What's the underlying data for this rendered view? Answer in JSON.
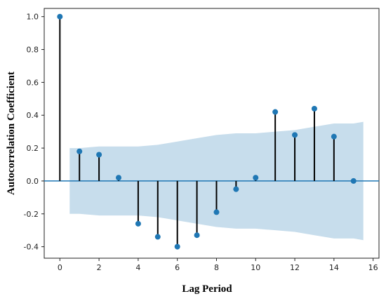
{
  "chart_data": {
    "type": "stem",
    "xlabel": "Lag Period",
    "ylabel": "Autocorrelation Coefficient",
    "xlim": [
      -0.8,
      16.3
    ],
    "ylim": [
      -0.47,
      1.05
    ],
    "x_ticks": [
      0,
      2,
      4,
      6,
      8,
      10,
      12,
      14,
      16
    ],
    "y_ticks": [
      1.0,
      0.8,
      0.6,
      0.4,
      0.2,
      0.0,
      -0.2,
      -0.4
    ],
    "x_tick_labels": [
      "0",
      "2",
      "4",
      "6",
      "8",
      "10",
      "12",
      "14",
      "16"
    ],
    "y_tick_labels": [
      "1.0",
      "0.8",
      "0.6",
      "0.4",
      "0.2",
      "0.0",
      "-0.2",
      "-0.4"
    ],
    "series": [
      {
        "x": [
          0,
          1,
          2,
          3,
          4,
          5,
          6,
          7,
          8,
          9,
          10,
          11,
          12,
          13,
          14,
          15
        ],
        "values": [
          1.0,
          0.18,
          0.16,
          0.02,
          -0.26,
          -0.34,
          -0.4,
          -0.33,
          -0.19,
          -0.05,
          0.02,
          0.42,
          0.28,
          0.44,
          0.27,
          0.0
        ]
      }
    ],
    "confidence_band": {
      "x": [
        0.5,
        1,
        2,
        3,
        4,
        5,
        6,
        7,
        8,
        9,
        10,
        11,
        12,
        13,
        14,
        15,
        15.5
      ],
      "upper": [
        0.2,
        0.2,
        0.21,
        0.21,
        0.21,
        0.22,
        0.24,
        0.26,
        0.28,
        0.29,
        0.29,
        0.3,
        0.31,
        0.33,
        0.35,
        0.35,
        0.36
      ],
      "lower": [
        -0.2,
        -0.2,
        -0.21,
        -0.21,
        -0.21,
        -0.22,
        -0.24,
        -0.26,
        -0.28,
        -0.29,
        -0.29,
        -0.3,
        -0.31,
        -0.33,
        -0.35,
        -0.35,
        -0.36
      ]
    },
    "colors": {
      "marker": "#1f77b4",
      "stem": "#000000",
      "baseline": "#1f77b4",
      "band": "#1f77b4"
    },
    "grid": false
  }
}
